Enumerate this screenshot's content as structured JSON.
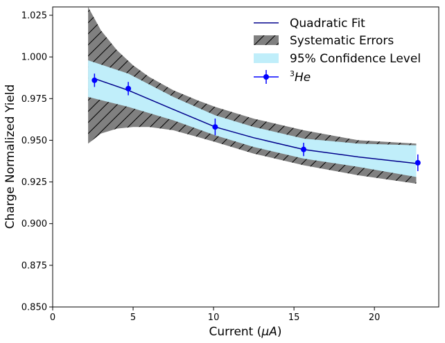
{
  "chart_data": {
    "type": "line",
    "xlabel_prefix": "Current (",
    "xlabel_unit": "μA",
    "xlabel_suffix": ")",
    "ylabel": "Charge Normalized Yield",
    "xlim": [
      0,
      24
    ],
    "ylim": [
      0.85,
      1.03
    ],
    "xticks": [
      0,
      5,
      10,
      15,
      20
    ],
    "xtick_labels": [
      "0",
      "5",
      "10",
      "15",
      "20"
    ],
    "yticks": [
      0.85,
      0.875,
      0.9,
      0.925,
      0.95,
      0.975,
      1.0,
      1.025
    ],
    "ytick_labels": [
      "0.850",
      "0.875",
      "0.900",
      "0.925",
      "0.950",
      "0.975",
      "1.000",
      "1.025"
    ],
    "legend": {
      "position": "top-right",
      "fit_label": "Quadratic Fit",
      "sys_label": "Systematic Errors",
      "ci_label": "95% Confidence Level",
      "data_label_sup": "3",
      "data_label_main": "He"
    },
    "colors": {
      "fit": "#00008b",
      "data": "#0000ff",
      "ci": "#c0eefa",
      "sys": "#808080",
      "hatch": "#000000"
    },
    "series": [
      {
        "name": "3He",
        "kind": "points",
        "x": [
          2.6,
          4.7,
          10.1,
          15.6,
          22.7
        ],
        "y": [
          0.986,
          0.981,
          0.958,
          0.9445,
          0.9365
        ],
        "yerr": [
          0.004,
          0.004,
          0.005,
          0.004,
          0.005
        ]
      },
      {
        "name": "Quadratic Fit",
        "kind": "line",
        "x": [
          2.6,
          4.7,
          7.5,
          10.1,
          12.5,
          15.6,
          19.0,
          22.7
        ],
        "y": [
          0.987,
          0.98,
          0.9685,
          0.958,
          0.9515,
          0.9445,
          0.94,
          0.936
        ]
      },
      {
        "name": "95% Confidence Level",
        "kind": "band",
        "x": [
          2.2,
          4.7,
          7.5,
          10.1,
          12.5,
          15.6,
          19.0,
          22.6
        ],
        "lower": [
          0.976,
          0.97,
          0.962,
          0.953,
          0.946,
          0.939,
          0.934,
          0.928
        ],
        "upper": [
          0.998,
          0.99,
          0.976,
          0.965,
          0.958,
          0.951,
          0.948,
          0.947
        ]
      },
      {
        "name": "Systematic Errors",
        "kind": "band",
        "x": [
          2.2,
          3.0,
          4.0,
          5.0,
          6.0,
          7.5,
          9.0,
          10.1,
          12.5,
          15.6,
          19.0,
          22.6
        ],
        "lower": [
          0.948,
          0.954,
          0.957,
          0.958,
          0.958,
          0.956,
          0.952,
          0.949,
          0.942,
          0.935,
          0.929,
          0.924
        ],
        "upper": [
          1.03,
          1.016,
          1.004,
          0.995,
          0.988,
          0.98,
          0.974,
          0.97,
          0.963,
          0.956,
          0.95,
          0.948
        ]
      }
    ]
  }
}
